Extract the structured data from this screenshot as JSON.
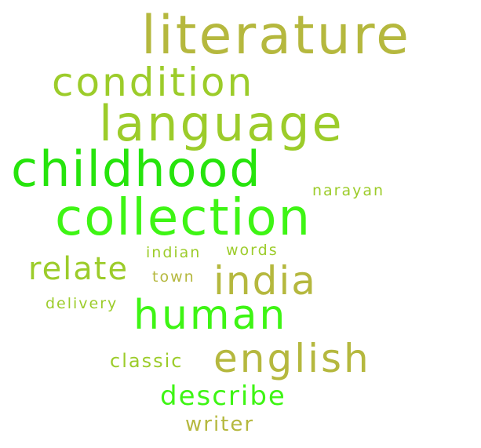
{
  "words": {
    "literature": "literature",
    "condition": "condition",
    "language": "language",
    "childhood": "childhood",
    "narayan": "narayan",
    "collection": "collection",
    "indian": "indian",
    "words": "words",
    "relate": "relate",
    "india": "india",
    "town": "town",
    "delivery": "delivery",
    "human": "human",
    "classic": "classic",
    "english": "english",
    "describe": "describe",
    "writer": "writer"
  },
  "colors": {
    "olive": "#b5b83e",
    "lime": "#9ccc2a",
    "green": "#26e40c",
    "bright": "#3ef514",
    "background": "#ffffff"
  }
}
